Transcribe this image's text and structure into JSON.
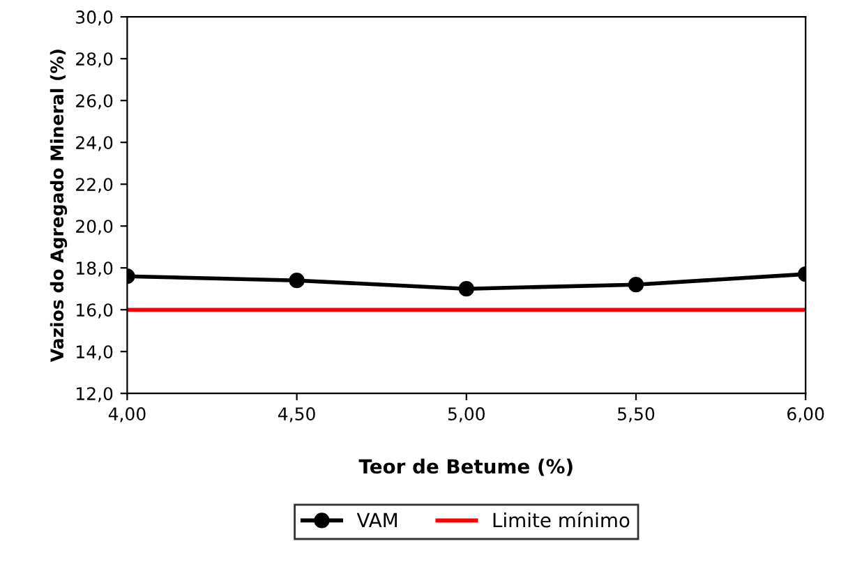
{
  "chart_data": {
    "type": "line",
    "xlabel": "Teor de Betume (%)",
    "ylabel": "Vazios do Agregado Mineral (%)",
    "x": [
      4.0,
      4.5,
      5.0,
      5.5,
      6.0
    ],
    "series": [
      {
        "name": "VAM",
        "color": "#000000",
        "values": [
          17.6,
          17.4,
          17.0,
          17.2,
          17.7
        ],
        "marker": "circle"
      },
      {
        "name": "Limite mínimo",
        "color": "#ff0000",
        "values": [
          16.0,
          16.0,
          16.0,
          16.0,
          16.0
        ],
        "marker": "none"
      }
    ],
    "xlim": [
      4.0,
      6.0
    ],
    "xticks": [
      {
        "value": 4.0,
        "label": "4,00"
      },
      {
        "value": 4.5,
        "label": "4,50"
      },
      {
        "value": 5.0,
        "label": "5,00"
      },
      {
        "value": 5.5,
        "label": "5,50"
      },
      {
        "value": 6.0,
        "label": "6,00"
      }
    ],
    "ylim": [
      12.0,
      30.0
    ],
    "yticks": [
      {
        "value": 12,
        "label": "12,0"
      },
      {
        "value": 14,
        "label": "14,0"
      },
      {
        "value": 16,
        "label": "16,0"
      },
      {
        "value": 18,
        "label": "18,0"
      },
      {
        "value": 20,
        "label": "20,0"
      },
      {
        "value": 22,
        "label": "22,0"
      },
      {
        "value": 24,
        "label": "24,0"
      },
      {
        "value": 26,
        "label": "26,0"
      },
      {
        "value": 28,
        "label": "28,0"
      },
      {
        "value": 30,
        "label": "30,0"
      }
    ],
    "grid": false,
    "legend": "bottom",
    "line_style": "solid"
  }
}
